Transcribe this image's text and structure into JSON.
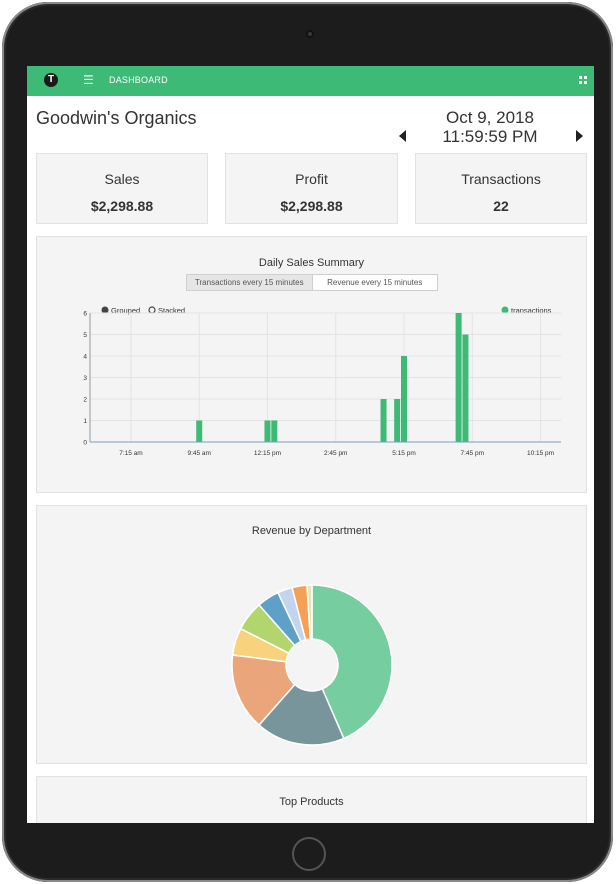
{
  "nav": {
    "title": "DASHBOARD",
    "logo_letter": "T"
  },
  "header": {
    "store_name": "Goodwin's Organics",
    "date": "Oct 9, 2018",
    "time": "11:59:59 PM"
  },
  "cards": [
    {
      "label": "Sales",
      "value": "$2,298.88"
    },
    {
      "label": "Profit",
      "value": "$2,298.88"
    },
    {
      "label": "Transactions",
      "value": "22"
    }
  ],
  "sales_panel": {
    "title": "Daily Sales Summary",
    "tabs": [
      "Transactions every 15 minutes",
      "Revenue every 15 minutes"
    ],
    "active_tab": 0,
    "legend": {
      "grouped": "Grouped",
      "stacked": "Stacked",
      "series": "transactions"
    }
  },
  "revenue_panel": {
    "title": "Revenue by Department"
  },
  "products_panel": {
    "title": "Top Products"
  },
  "colors": {
    "accent": "#3dba76",
    "bar": "#3dba76"
  },
  "chart_data": [
    {
      "type": "bar",
      "title": "Daily Sales Summary",
      "series": [
        {
          "name": "transactions",
          "color": "#3dba76",
          "points": [
            [
              9.75,
              1
            ],
            [
              12.25,
              1
            ],
            [
              12.5,
              1
            ],
            [
              16.5,
              2
            ],
            [
              17.0,
              2
            ],
            [
              17.25,
              4
            ],
            [
              19.25,
              6
            ],
            [
              19.5,
              5
            ]
          ]
        }
      ],
      "x_axis": {
        "min": 5.75,
        "max": 23.0,
        "ticks": [
          7.25,
          9.75,
          12.25,
          14.75,
          17.25,
          19.75,
          22.25
        ],
        "tick_labels": [
          "7:15 am",
          "9:45 am",
          "12:15 pm",
          "2:45 pm",
          "5:15 pm",
          "7:45 pm",
          "10:15 pm"
        ]
      },
      "y_axis": {
        "min": 0,
        "max": 6,
        "ticks": [
          0,
          1,
          2,
          3,
          4,
          5,
          6
        ]
      },
      "grid": true,
      "legend": "top"
    },
    {
      "type": "pie",
      "title": "Revenue by Department",
      "donut": true,
      "slices": [
        {
          "value": 43.5,
          "color": "#76cda0"
        },
        {
          "value": 18.0,
          "color": "#78959b"
        },
        {
          "value": 15.5,
          "color": "#eba57a"
        },
        {
          "value": 5.5,
          "color": "#f8d27c"
        },
        {
          "value": 6.0,
          "color": "#b3d56e"
        },
        {
          "value": 4.5,
          "color": "#5fa0c9"
        },
        {
          "value": 3.0,
          "color": "#c3d5ee"
        },
        {
          "value": 3.0,
          "color": "#f6a056"
        },
        {
          "value": 1.0,
          "color": "#dce9b7"
        }
      ]
    }
  ]
}
